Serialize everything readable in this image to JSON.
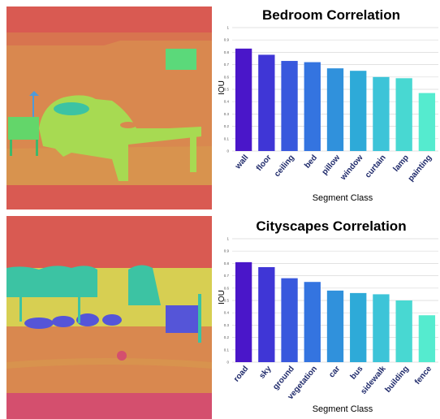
{
  "colors": {
    "bar_gradient": [
      "#4a16c9",
      "#3f36d6",
      "#3858dd",
      "#3474e0",
      "#3091dc",
      "#2eaad8",
      "#3dc4d8",
      "#48d8d2",
      "#55ebcf"
    ],
    "grid": "#d9d9d9",
    "label_navy": "#1f2a6b",
    "seg_red": "#d95a52",
    "seg_orange": "#d9884f",
    "seg_green": "#a7da52",
    "seg_teal": "#3cc3a3",
    "seg_yellow": "#d7cf52",
    "seg_blue": "#5555d8",
    "seg_pink": "#d44f6e"
  },
  "chart_data": [
    {
      "type": "bar",
      "title": "Bedroom Correlation",
      "xlabel": "Segment Class",
      "ylabel": "IOU",
      "ylim": [
        0,
        1
      ],
      "yticks": [
        "0",
        "0.1",
        "0.2",
        "0.3",
        "0.4",
        "0.5",
        "0.6",
        "0.7",
        "0.8",
        "0.9",
        "1"
      ],
      "grid": true,
      "categories": [
        "wall",
        "floor",
        "ceiling",
        "bed",
        "pillow",
        "window",
        "curtain",
        "lamp",
        "painting"
      ],
      "values": [
        0.83,
        0.78,
        0.73,
        0.72,
        0.67,
        0.65,
        0.6,
        0.59,
        0.47
      ]
    },
    {
      "type": "bar",
      "title": "Cityscapes Correlation",
      "xlabel": "Segment Class",
      "ylabel": "IOU",
      "ylim": [
        0,
        1
      ],
      "yticks": [
        "0",
        "0.1",
        "0.2",
        "0.3",
        "0.4",
        "0.5",
        "0.6",
        "0.7",
        "0.8",
        "0.9",
        "1"
      ],
      "grid": true,
      "categories": [
        "road",
        "sky",
        "ground",
        "vegetation",
        "car",
        "bus",
        "sidewalk",
        "building",
        "fence"
      ],
      "values": [
        0.81,
        0.77,
        0.68,
        0.65,
        0.58,
        0.56,
        0.55,
        0.5,
        0.38
      ]
    }
  ]
}
